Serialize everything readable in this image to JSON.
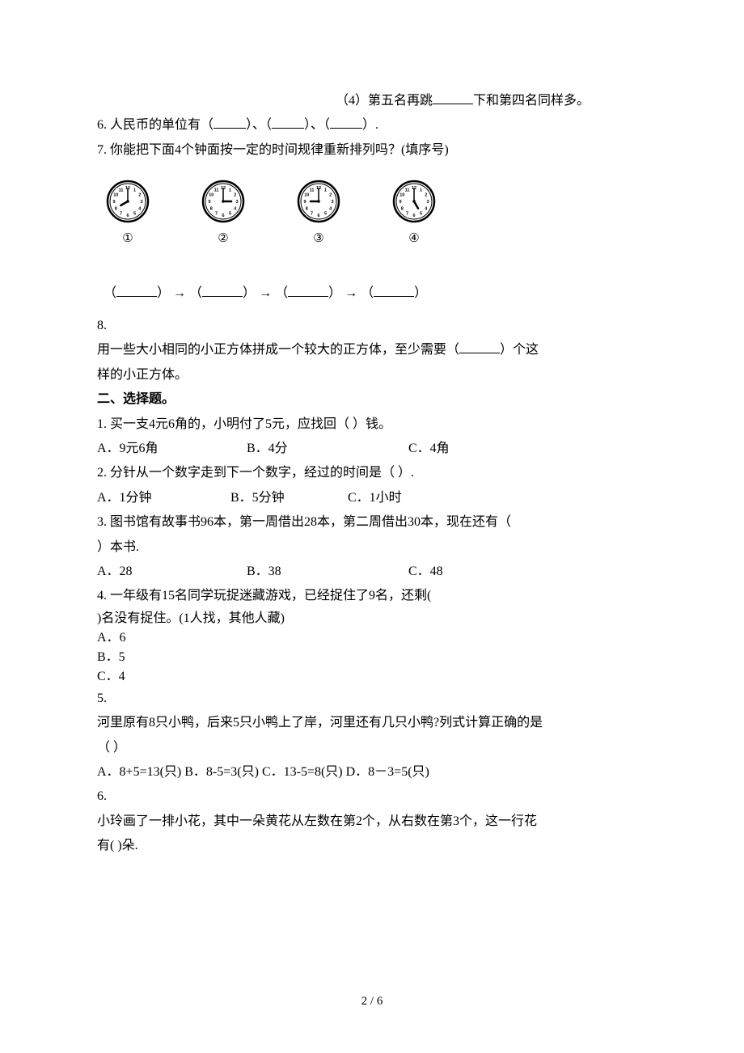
{
  "q_pre": {
    "sub4": "（4）第五名再跳",
    "sub4_after": "下和第四名同样多。"
  },
  "q6": {
    "text_a": "6.  人民币的单位有（",
    "text_b": "）、（",
    "text_c": "）、（",
    "text_d": "）."
  },
  "q7": {
    "text": "7.  你能把下面4个钟面按一定的时间规律重新排列吗？(填序号)",
    "labels": [
      "①",
      "②",
      "③",
      "④"
    ],
    "clocks": [
      {
        "hour": 8,
        "minute": 0
      },
      {
        "hour": 3,
        "minute": 0
      },
      {
        "hour": 9,
        "minute": 0
      },
      {
        "hour": 5,
        "minute": 0
      }
    ],
    "seq_open": "（",
    "seq_close": "）",
    "arrow": " → "
  },
  "q8": {
    "num": "8.",
    "line1": "用一些大小相同的小正方体拼成一个较大的正方体，至少需要（",
    "line1_after": "）个这",
    "line2": "样的小正方体。"
  },
  "section2": "二、选择题。",
  "mc1": {
    "stem": "1.  买一支4元6角的，小明付了5元，应找回（    ）钱。",
    "a": "A．9元6角",
    "b": "B．4分",
    "c": "C．4角"
  },
  "mc2": {
    "stem": "2.  分针从一个数字走到下一个数字，经过的时间是（   ）.",
    "a": "A．1分钟",
    "b": "B．5分钟",
    "c": "C．1小时"
  },
  "mc3": {
    "stem1": "3.  图书馆有故事书96本，第一周借出28本，第二周借出30本，现在还有（   ",
    "stem2": "）本书.",
    "a": "A．28",
    "b": "B．38",
    "c": "C．48"
  },
  "mc4": {
    "stem1": "4.  一年级有15名同学玩捉迷藏游戏，已经捉住了9名，还剩(     ",
    "stem2": ")名没有捉住。(1人找，其他人藏)",
    "a": "A．6",
    "b": "B．5",
    "c": "C．4"
  },
  "mc5": {
    "num": "5.",
    "stem1": "河里原有8只小鸭，后来5只小鸭上了岸，河里还有几只小鸭?列式计算正确的是",
    "stem2": "（   ）",
    "opts": "A．8+5=13(只)   B．8-5=3(只)   C．13-5=8(只)   D．8－3=5(只)"
  },
  "mc6": {
    "num": "6.",
    "stem1": "小玲画了一排小花，其中一朵黄花从左数在第2个，从右数在第3个，这一行花",
    "stem2": "有(    )朵."
  },
  "footer": "2 / 6",
  "colors": {
    "text": "#000000",
    "bg": "#ffffff"
  }
}
